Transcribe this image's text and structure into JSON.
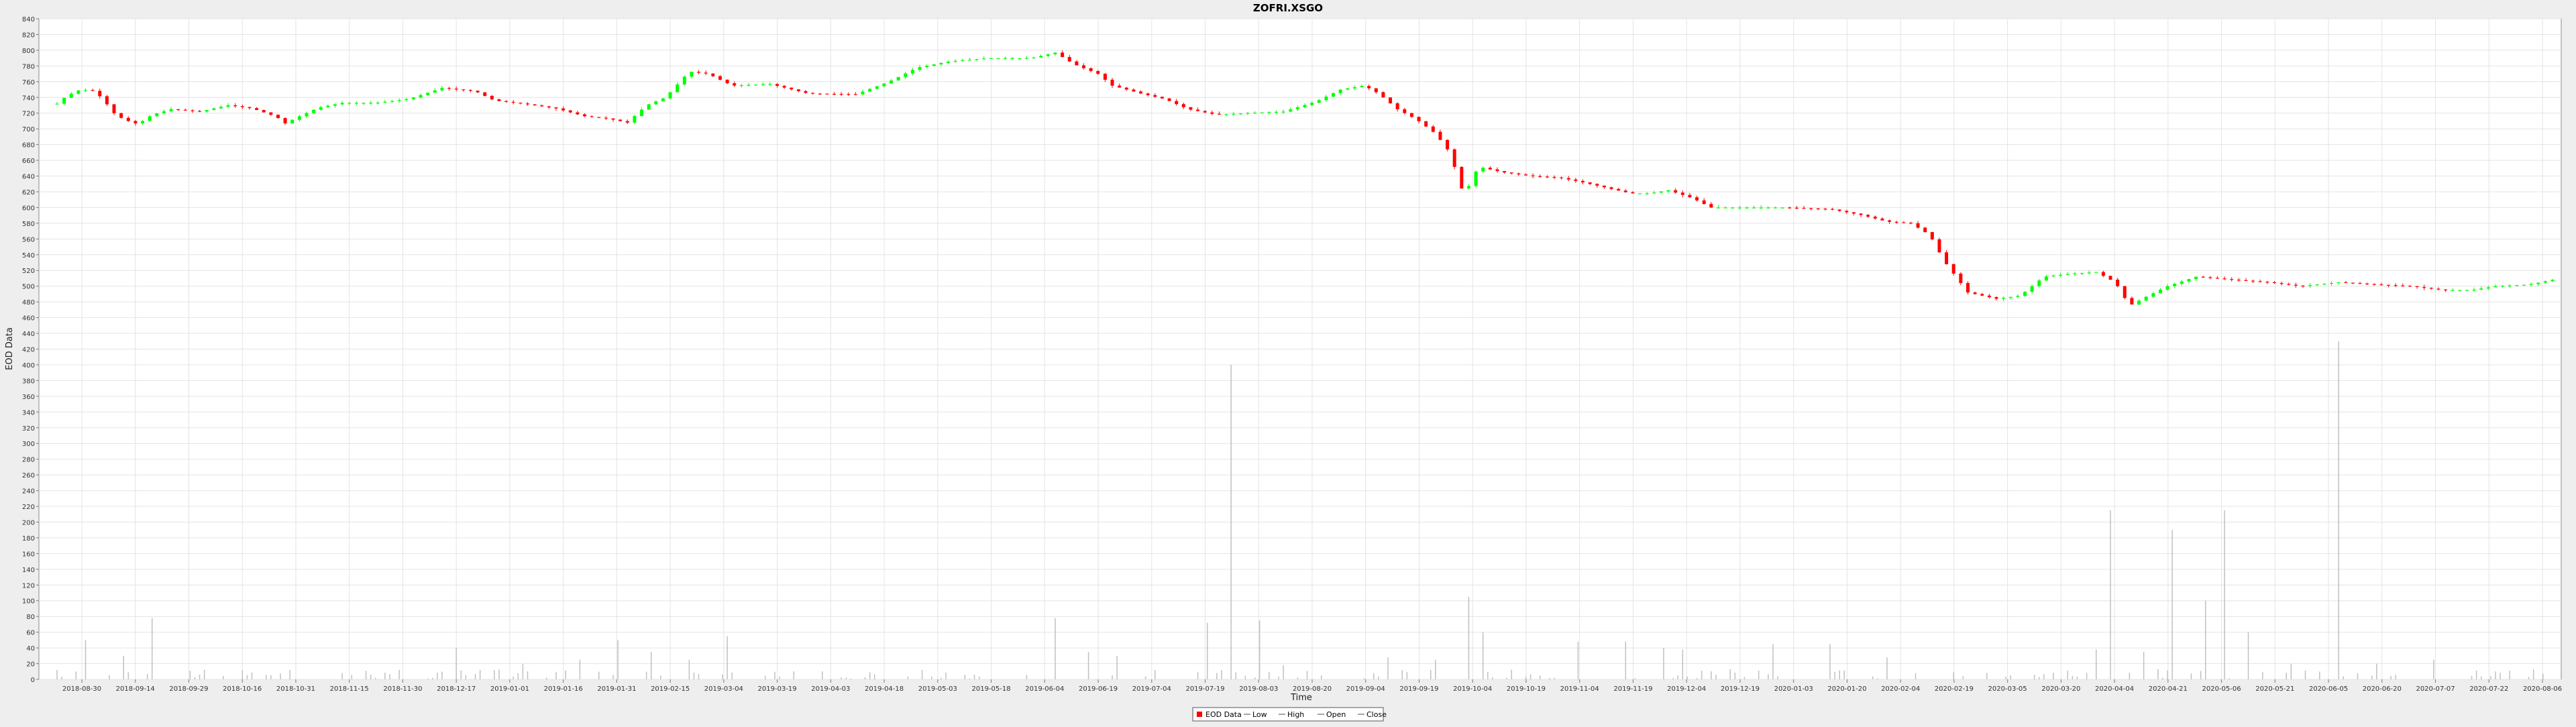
{
  "chart_data": {
    "type": "candlestick",
    "title": "ZOFRI.XSGO",
    "xlabel": "Time",
    "ylabel": "EOD Data",
    "ylim": [
      0,
      840
    ],
    "ytick_step": 20,
    "grid": true,
    "legend_position": "bottom-center",
    "x_ticks": [
      "2018-08-30",
      "2018-09-14",
      "2018-09-29",
      "2018-10-16",
      "2018-10-31",
      "2018-11-15",
      "2018-11-30",
      "2018-12-17",
      "2019-01-01",
      "2019-01-16",
      "2019-01-31",
      "2019-02-15",
      "2019-03-04",
      "2019-03-19",
      "2019-04-03",
      "2019-04-18",
      "2019-05-03",
      "2019-05-18",
      "2019-06-04",
      "2019-06-19",
      "2019-07-04",
      "2019-07-19",
      "2019-08-03",
      "2019-08-20",
      "2019-09-04",
      "2019-09-19",
      "2019-10-04",
      "2019-10-19",
      "2019-11-04",
      "2019-11-19",
      "2019-12-04",
      "2019-12-19",
      "2020-01-03",
      "2020-01-20",
      "2020-02-04",
      "2020-02-19",
      "2020-03-05",
      "2020-03-20",
      "2020-04-04",
      "2020-04-21",
      "2020-05-06",
      "2020-05-21",
      "2020-06-05",
      "2020-06-20",
      "2020-07-07",
      "2020-07-22",
      "2020-08-06"
    ],
    "legend": [
      {
        "label": "EOD Data",
        "kind": "box"
      },
      {
        "label": "Low",
        "kind": "line"
      },
      {
        "label": "High",
        "kind": "line"
      },
      {
        "label": "Open",
        "kind": "line"
      },
      {
        "label": "Close",
        "kind": "line"
      }
    ],
    "colors": {
      "up": "#00ff00",
      "down": "#ff0000",
      "volume": "#c0c0c0",
      "grid": "#e4e4e4"
    },
    "series_anchors": [
      [
        0,
        732
      ],
      [
        4,
        742
      ],
      [
        10,
        750
      ],
      [
        16,
        748
      ],
      [
        20,
        735
      ],
      [
        24,
        720
      ],
      [
        28,
        712
      ],
      [
        34,
        706
      ],
      [
        40,
        718
      ],
      [
        48,
        725
      ],
      [
        60,
        722
      ],
      [
        72,
        730
      ],
      [
        82,
        726
      ],
      [
        92,
        716
      ],
      [
        96,
        707
      ],
      [
        102,
        716
      ],
      [
        110,
        727
      ],
      [
        120,
        733
      ],
      [
        134,
        733
      ],
      [
        148,
        738
      ],
      [
        162,
        752
      ],
      [
        176,
        748
      ],
      [
        184,
        736
      ],
      [
        196,
        732
      ],
      [
        210,
        726
      ],
      [
        222,
        716
      ],
      [
        232,
        713
      ],
      [
        240,
        708
      ],
      [
        248,
        730
      ],
      [
        256,
        740
      ],
      [
        266,
        773
      ],
      [
        274,
        770
      ],
      [
        284,
        755
      ],
      [
        300,
        757
      ],
      [
        316,
        745
      ],
      [
        336,
        744
      ],
      [
        350,
        760
      ],
      [
        362,
        778
      ],
      [
        376,
        786
      ],
      [
        392,
        790
      ],
      [
        410,
        790
      ],
      [
        420,
        797
      ],
      [
        428,
        782
      ],
      [
        438,
        770
      ],
      [
        444,
        755
      ],
      [
        456,
        745
      ],
      [
        466,
        738
      ],
      [
        476,
        725
      ],
      [
        488,
        718
      ],
      [
        500,
        720
      ],
      [
        516,
        722
      ],
      [
        530,
        735
      ],
      [
        540,
        750
      ],
      [
        550,
        755
      ],
      [
        556,
        745
      ],
      [
        564,
        725
      ],
      [
        572,
        712
      ],
      [
        580,
        694
      ],
      [
        586,
        670
      ],
      [
        592,
        615
      ],
      [
        598,
        652
      ],
      [
        608,
        645
      ],
      [
        620,
        640
      ],
      [
        632,
        638
      ],
      [
        642,
        632
      ],
      [
        652,
        625
      ],
      [
        662,
        618
      ],
      [
        670,
        618
      ],
      [
        678,
        622
      ],
      [
        688,
        612
      ],
      [
        696,
        600
      ],
      [
        710,
        600
      ],
      [
        726,
        600
      ],
      [
        746,
        598
      ],
      [
        760,
        590
      ],
      [
        770,
        582
      ],
      [
        780,
        580
      ],
      [
        788,
        565
      ],
      [
        794,
        532
      ],
      [
        804,
        492
      ],
      [
        816,
        484
      ],
      [
        826,
        488
      ],
      [
        836,
        512
      ],
      [
        848,
        516
      ],
      [
        858,
        518
      ],
      [
        866,
        505
      ],
      [
        872,
        475
      ],
      [
        878,
        485
      ],
      [
        888,
        500
      ],
      [
        900,
        512
      ],
      [
        916,
        508
      ],
      [
        930,
        505
      ],
      [
        944,
        500
      ],
      [
        960,
        505
      ],
      [
        976,
        502
      ],
      [
        990,
        500
      ],
      [
        1004,
        495
      ],
      [
        1016,
        495
      ],
      [
        1026,
        500
      ],
      [
        1040,
        502
      ],
      [
        1050,
        508
      ]
    ],
    "volume_spikes": [
      [
        12,
        50
      ],
      [
        28,
        30
      ],
      [
        40,
        78
      ],
      [
        168,
        40
      ],
      [
        196,
        20
      ],
      [
        220,
        25
      ],
      [
        236,
        50
      ],
      [
        250,
        35
      ],
      [
        266,
        25
      ],
      [
        282,
        55
      ],
      [
        420,
        78
      ],
      [
        434,
        35
      ],
      [
        446,
        30
      ],
      [
        484,
        72
      ],
      [
        494,
        400
      ],
      [
        506,
        75
      ],
      [
        516,
        18
      ],
      [
        560,
        28
      ],
      [
        580,
        25
      ],
      [
        594,
        105
      ],
      [
        600,
        60
      ],
      [
        640,
        48
      ],
      [
        660,
        48
      ],
      [
        676,
        40
      ],
      [
        684,
        38
      ],
      [
        722,
        45
      ],
      [
        746,
        45
      ],
      [
        770,
        28
      ],
      [
        858,
        38
      ],
      [
        864,
        215
      ],
      [
        878,
        35
      ],
      [
        890,
        190
      ],
      [
        904,
        100
      ],
      [
        912,
        215
      ],
      [
        922,
        60
      ],
      [
        940,
        20
      ],
      [
        960,
        430
      ],
      [
        976,
        20
      ],
      [
        1000,
        25
      ]
    ]
  }
}
